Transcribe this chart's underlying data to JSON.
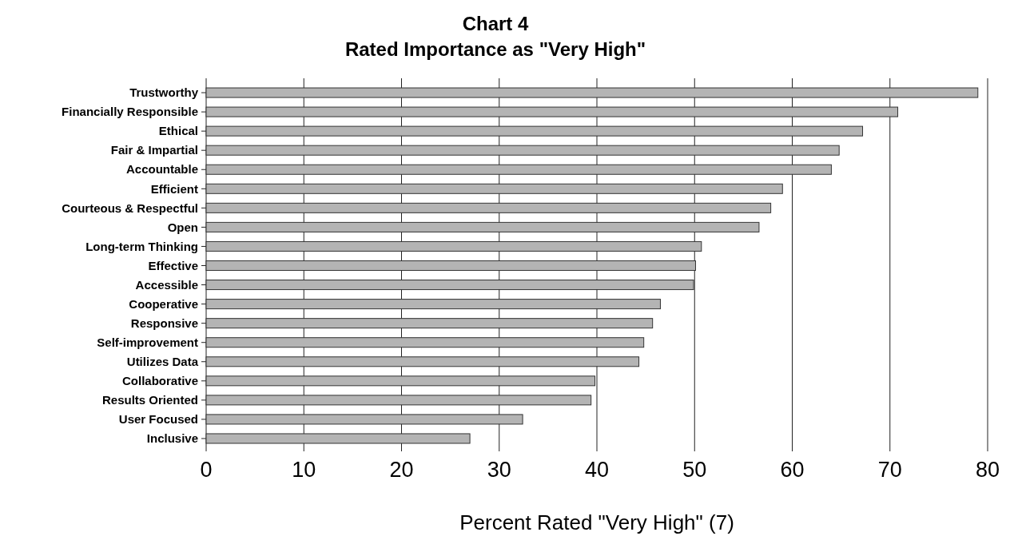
{
  "chart_data": {
    "type": "bar",
    "orientation": "horizontal",
    "title": "Chart 4",
    "subtitle": "Rated Importance as \"Very High\"",
    "xlabel": "Percent Rated \"Very High\" (7)",
    "categories": [
      "Trustworthy",
      "Financially Responsible",
      "Ethical",
      "Fair & Impartial",
      "Accountable",
      "Efficient",
      "Courteous & Respectful",
      "Open",
      "Long-term Thinking",
      "Effective",
      "Accessible",
      "Cooperative",
      "Responsive",
      "Self-improvement",
      "Utilizes Data",
      "Collaborative",
      "Results Oriented",
      "User Focused",
      "Inclusive"
    ],
    "values": [
      79.0,
      70.8,
      67.2,
      64.8,
      64.0,
      59.0,
      57.8,
      56.6,
      50.7,
      50.1,
      49.9,
      46.5,
      45.7,
      44.8,
      44.3,
      39.8,
      39.4,
      32.4,
      27.0
    ],
    "color": "#b4b4b4",
    "xlim": [
      0,
      80
    ],
    "xticks": [
      0,
      10,
      20,
      30,
      40,
      50,
      60,
      70,
      80
    ],
    "grid": "x"
  }
}
